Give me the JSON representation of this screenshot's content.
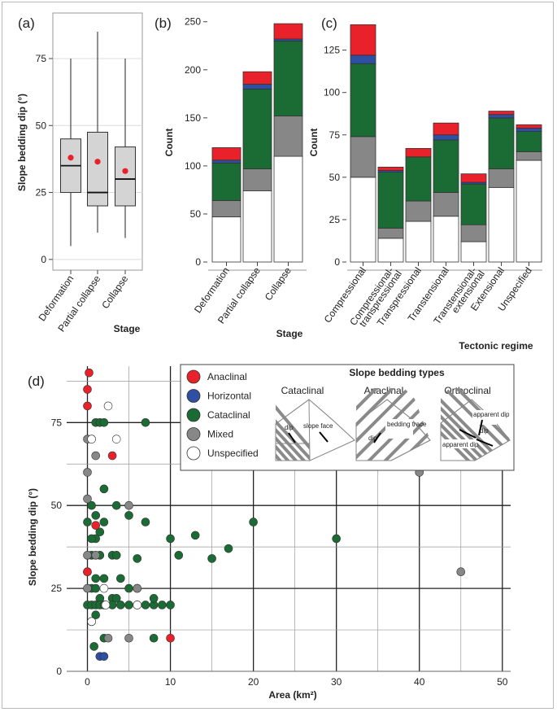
{
  "colors": {
    "anaclinal": "#e8212a",
    "horizontal": "#2f4fa3",
    "cataclinal": "#1b6b34",
    "mixed": "#878787",
    "unspecified": "#ffffff",
    "box_fill": "#d4d4d4",
    "mean_marker": "#e8212a"
  },
  "chart_data": [
    {
      "panel": "(a)",
      "type": "box",
      "categories": [
        "Deformation",
        "Partial collapse",
        "Collapse"
      ],
      "ylabel": "Slope bedding dip (°)",
      "xlabel": "Stage",
      "ylim": [
        -4,
        92
      ],
      "yticks": [
        0,
        25,
        50,
        75
      ],
      "boxes": [
        {
          "min": 5,
          "q1": 25,
          "median": 35,
          "q3": 45,
          "max": 75,
          "mean": 38
        },
        {
          "min": 10,
          "q1": 20,
          "median": 25,
          "q3": 47.5,
          "max": 85,
          "mean": 36.5
        },
        {
          "min": 8,
          "q1": 20,
          "median": 30,
          "q3": 42,
          "max": 75,
          "mean": 33
        }
      ]
    },
    {
      "panel": "(b)",
      "type": "stacked-bar",
      "categories": [
        "Deformation",
        "Partial collapse",
        "Collapse"
      ],
      "ylabel": "Count",
      "xlabel": "Stage",
      "ylim": [
        0,
        254
      ],
      "yticks": [
        0,
        50,
        100,
        150,
        200,
        250
      ],
      "series": [
        {
          "name": "Unspecified",
          "values": [
            47,
            74,
            110
          ]
        },
        {
          "name": "Mixed",
          "values": [
            17,
            23,
            42
          ]
        },
        {
          "name": "Cataclinal",
          "values": [
            39,
            83,
            78
          ]
        },
        {
          "name": "Horizontal",
          "values": [
            3,
            5,
            2
          ]
        },
        {
          "name": "Anaclinal",
          "values": [
            13,
            13,
            16
          ]
        }
      ]
    },
    {
      "panel": "(c)",
      "type": "stacked-bar",
      "categories": [
        "Compressional",
        "Compressional-\ntranspressional",
        "Transpressional",
        "Transtensional",
        "Transtensional-\nextensional",
        "Extensional",
        "Unspecified"
      ],
      "ylabel": "Count",
      "xlabel": "Tectonic regime",
      "ylim": [
        0,
        144
      ],
      "yticks": [
        0,
        25,
        50,
        75,
        100,
        125
      ],
      "series": [
        {
          "name": "Unspecified",
          "values": [
            50,
            14,
            24,
            27,
            12,
            44,
            60
          ]
        },
        {
          "name": "Mixed",
          "values": [
            24,
            6,
            12,
            14,
            10,
            11,
            5
          ]
        },
        {
          "name": "Cataclinal",
          "values": [
            43,
            33,
            26,
            31,
            24,
            30,
            12
          ]
        },
        {
          "name": "Horizontal",
          "values": [
            5,
            1,
            0,
            3,
            1,
            2,
            2
          ]
        },
        {
          "name": "Anaclinal",
          "values": [
            18,
            2,
            5,
            7,
            5,
            2,
            2
          ]
        }
      ]
    },
    {
      "panel": "(d)",
      "type": "scatter",
      "xlabel": "Area (km²)",
      "ylabel": "Slope bedding dip (°)",
      "xlim": [
        -2.5,
        51
      ],
      "ylim": [
        0,
        92
      ],
      "xticks": [
        0,
        10,
        20,
        30,
        40,
        50
      ],
      "yticks": [
        0,
        25,
        50,
        75
      ],
      "series": [
        {
          "name": "Cataclinal",
          "points": [
            [
              1,
              75
            ],
            [
              1.5,
              75
            ],
            [
              2,
              75
            ],
            [
              7,
              75
            ],
            [
              2,
              55
            ],
            [
              3.5,
              50
            ],
            [
              0.5,
              50
            ],
            [
              0,
              45
            ],
            [
              1,
              47
            ],
            [
              2,
              45
            ],
            [
              5,
              47
            ],
            [
              7,
              45
            ],
            [
              1.5,
              42
            ],
            [
              1,
              40
            ],
            [
              0.5,
              40
            ],
            [
              10,
              40
            ],
            [
              13,
              41
            ],
            [
              11,
              35
            ],
            [
              15,
              34
            ],
            [
              17,
              37
            ],
            [
              20,
              45
            ],
            [
              30,
              40
            ],
            [
              0.5,
              35
            ],
            [
              1.5,
              35
            ],
            [
              3,
              35
            ],
            [
              3.5,
              35
            ],
            [
              6,
              34
            ],
            [
              0,
              30
            ],
            [
              1,
              28
            ],
            [
              2,
              28
            ],
            [
              4,
              28
            ],
            [
              5,
              25
            ],
            [
              6,
              25
            ],
            [
              0.5,
              25
            ],
            [
              1,
              25
            ],
            [
              3,
              22
            ],
            [
              3.5,
              22
            ],
            [
              1.5,
              22
            ],
            [
              0,
              20
            ],
            [
              0.5,
              20
            ],
            [
              1,
              20
            ],
            [
              1.5,
              20
            ],
            [
              2,
              20
            ],
            [
              3,
              20
            ],
            [
              4,
              20
            ],
            [
              5,
              20
            ],
            [
              6,
              20
            ],
            [
              7,
              20
            ],
            [
              8,
              20
            ],
            [
              9,
              20
            ],
            [
              10,
              20
            ],
            [
              8,
              22
            ],
            [
              1,
              17
            ],
            [
              0.5,
              15
            ],
            [
              2,
              10
            ],
            [
              8,
              10
            ],
            [
              0.8,
              7.5
            ]
          ]
        },
        {
          "name": "Mixed",
          "points": [
            [
              0,
              70
            ],
            [
              0.5,
              70
            ],
            [
              1,
              65
            ],
            [
              0,
              60
            ],
            [
              0,
              52
            ],
            [
              5,
              50
            ],
            [
              0,
              35
            ],
            [
              1,
              35
            ],
            [
              6,
              25
            ],
            [
              0,
              25
            ],
            [
              5,
              10
            ],
            [
              2.5,
              10
            ],
            [
              40,
              60
            ],
            [
              45,
              30
            ]
          ]
        },
        {
          "name": "Unspecified",
          "points": [
            [
              2.5,
              80
            ],
            [
              3.5,
              70
            ],
            [
              0.5,
              70
            ],
            [
              2,
              25
            ],
            [
              6,
              20
            ],
            [
              0.5,
              15
            ],
            [
              2.2,
              20
            ]
          ]
        },
        {
          "name": "Anaclinal",
          "points": [
            [
              0.2,
              90
            ],
            [
              0,
              85
            ],
            [
              0,
              80
            ],
            [
              3,
              65
            ],
            [
              1,
              44
            ],
            [
              0,
              30
            ],
            [
              10,
              10
            ]
          ]
        },
        {
          "name": "Horizontal",
          "points": [
            [
              1.5,
              4.5
            ],
            [
              2,
              4.5
            ]
          ]
        }
      ]
    }
  ],
  "panel_d_inset": {
    "title": "Slope bedding types",
    "legend": [
      {
        "key": "anaclinal",
        "label": "Anaclinal"
      },
      {
        "key": "horizontal",
        "label": "Horizontal"
      },
      {
        "key": "cataclinal",
        "label": "Cataclinal"
      },
      {
        "key": "mixed",
        "label": "Mixed"
      },
      {
        "key": "unspecified",
        "label": "Unspecified"
      }
    ],
    "diagrams": [
      {
        "title": "Cataclinal",
        "labels": [
          "dip",
          "slope face"
        ]
      },
      {
        "title": "Anaclinal",
        "labels": [
          "dip",
          "bedding trace"
        ]
      },
      {
        "title": "Orthoclinal",
        "labels": [
          "apparent dip",
          "dip",
          "apparent dip"
        ]
      }
    ]
  }
}
